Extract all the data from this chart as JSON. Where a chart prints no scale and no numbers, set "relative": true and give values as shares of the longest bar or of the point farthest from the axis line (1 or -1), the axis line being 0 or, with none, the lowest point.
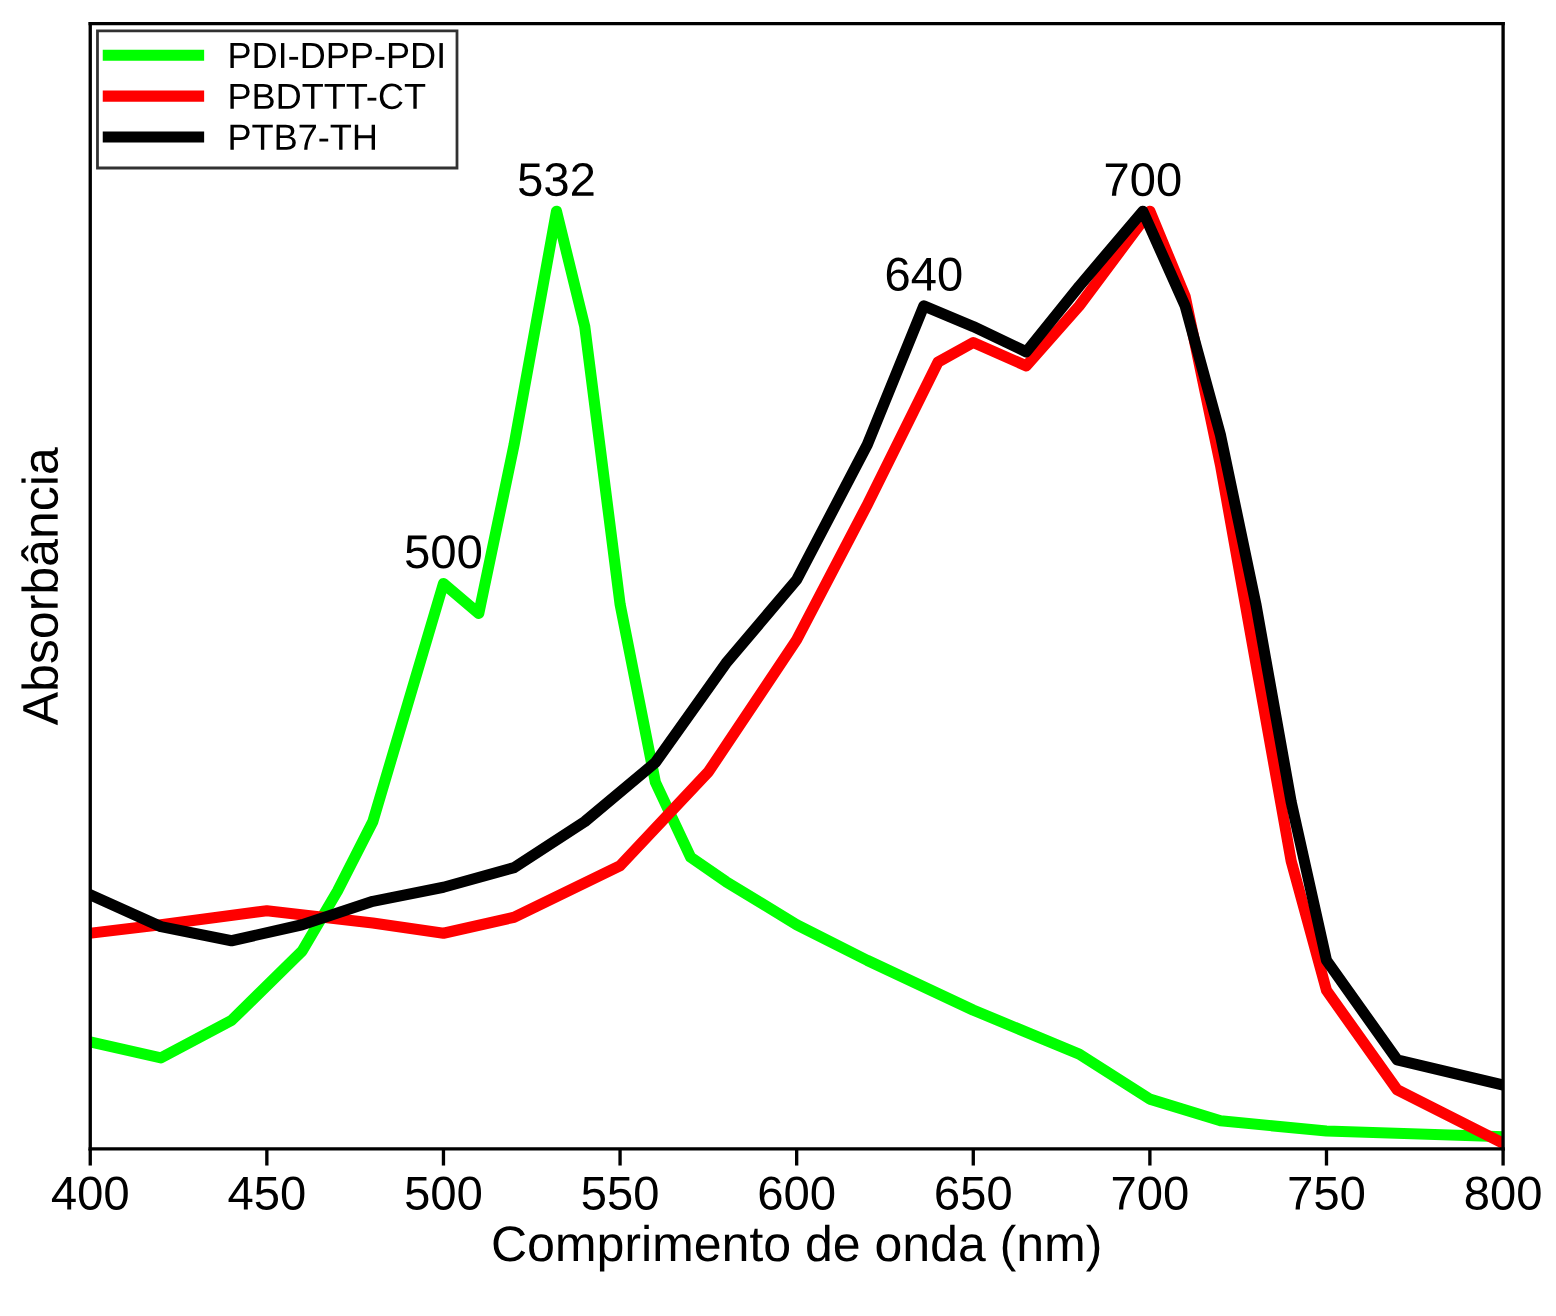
{
  "chart_data": {
    "type": "line",
    "xlabel": "Comprimento de onda (nm)",
    "ylabel": "Absorbância",
    "relative": true,
    "xlim": [
      400,
      800
    ],
    "xticks": [
      400,
      450,
      500,
      550,
      600,
      650,
      700,
      750,
      800
    ],
    "legend": "top left",
    "grid": false,
    "series": [
      {
        "name": "PDI-DPP-PDI",
        "color": "#00ff00",
        "x": [
          400,
          420,
          440,
          460,
          470,
          480,
          490,
          500,
          510,
          520,
          532,
          540,
          550,
          560,
          570,
          580,
          600,
          620,
          650,
          680,
          700,
          720,
          750,
          800
        ],
        "values": [
          0.114,
          0.097,
          0.137,
          0.211,
          0.275,
          0.349,
          0.476,
          0.603,
          0.571,
          0.751,
          1.0,
          0.877,
          0.581,
          0.391,
          0.311,
          0.285,
          0.239,
          0.201,
          0.148,
          0.101,
          0.053,
          0.03,
          0.019,
          0.013
        ]
      },
      {
        "name": "PBDTTT-CT",
        "color": "#ff0000",
        "x": [
          400,
          420,
          450,
          480,
          500,
          520,
          550,
          575,
          600,
          620,
          640,
          650,
          665,
          680,
          700,
          710,
          720,
          730,
          740,
          750,
          770,
          800
        ],
        "values": [
          0.23,
          0.239,
          0.254,
          0.241,
          0.23,
          0.247,
          0.302,
          0.402,
          0.543,
          0.687,
          0.839,
          0.86,
          0.835,
          0.899,
          1.0,
          0.909,
          0.729,
          0.518,
          0.307,
          0.169,
          0.063,
          0.006
        ]
      },
      {
        "name": "PTB7-TH",
        "color": "#000000",
        "x": [
          400,
          420,
          440,
          460,
          480,
          500,
          520,
          540,
          560,
          580,
          600,
          620,
          636,
          650,
          665,
          680,
          698,
          710,
          720,
          730,
          740,
          750,
          770,
          800
        ],
        "values": [
          0.271,
          0.237,
          0.222,
          0.239,
          0.264,
          0.279,
          0.3,
          0.349,
          0.412,
          0.518,
          0.607,
          0.751,
          0.899,
          0.877,
          0.85,
          0.92,
          1.0,
          0.899,
          0.761,
          0.581,
          0.37,
          0.201,
          0.095,
          0.068
        ]
      }
    ],
    "annotations": [
      {
        "text": "500",
        "x": 500,
        "y": 0.603
      },
      {
        "text": "532",
        "x": 532,
        "y": 1.0
      },
      {
        "text": "640",
        "x": 636,
        "y": 0.899
      },
      {
        "text": "700",
        "x": 698,
        "y": 1.0
      }
    ]
  }
}
